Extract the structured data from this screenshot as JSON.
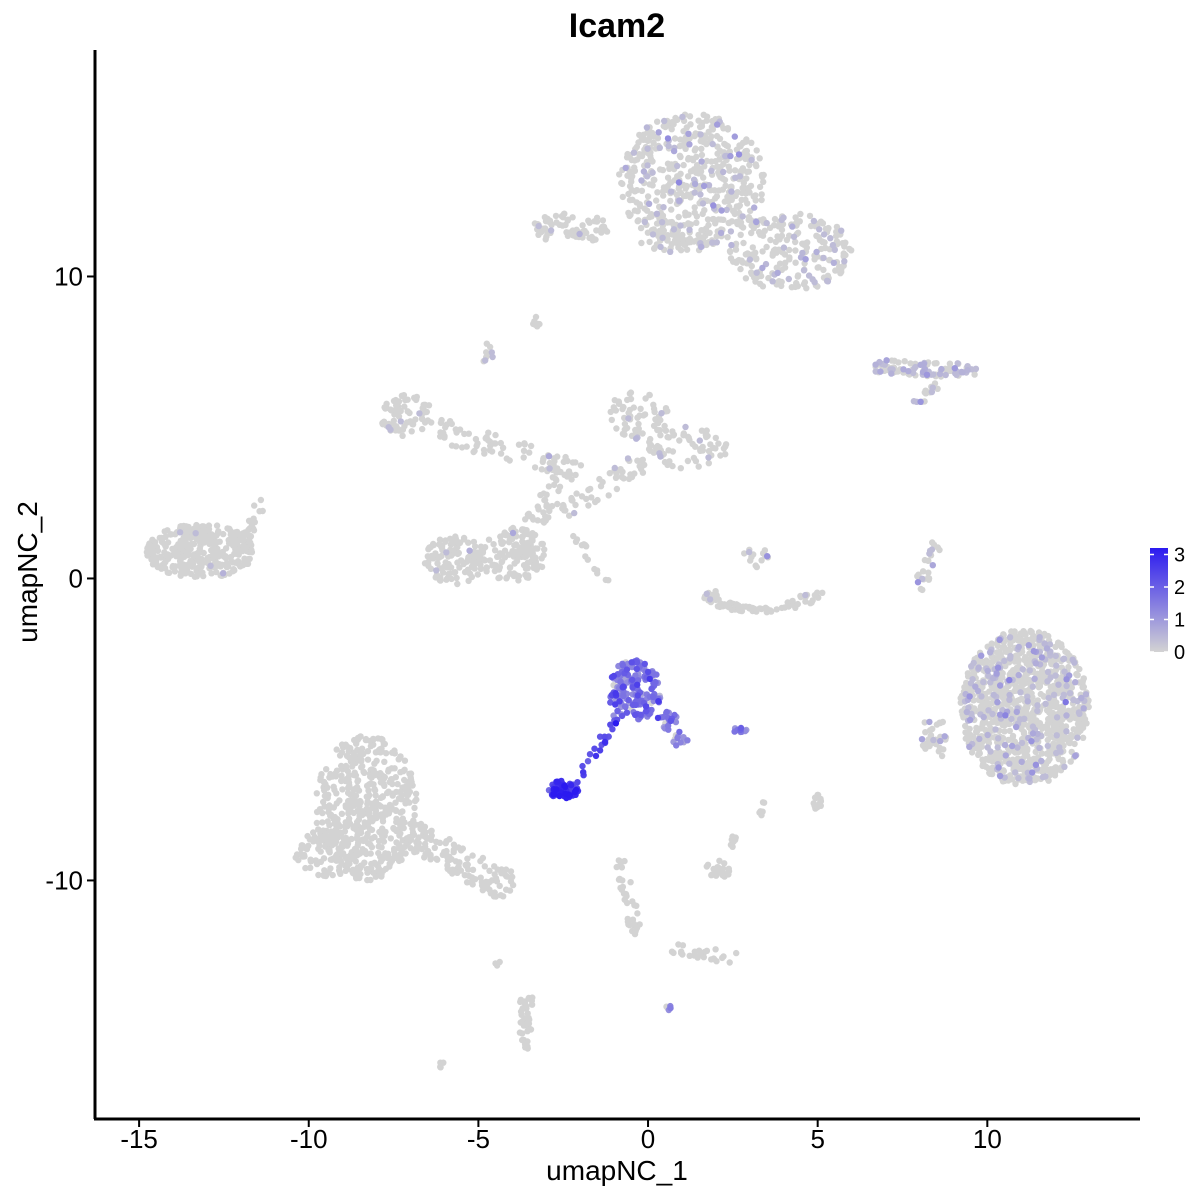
{
  "chart_data": {
    "type": "scatter",
    "title": "Icam2",
    "xlabel": "umapNC_1",
    "ylabel": "umapNC_2",
    "xlim": [
      -16.3,
      14.5
    ],
    "ylim": [
      -17.9,
      17.5
    ],
    "x_ticks": [
      -15,
      -10,
      -5,
      0,
      5,
      10
    ],
    "x_tick_labels": [
      "-15",
      "-10",
      "-5",
      "0",
      "5",
      "10"
    ],
    "y_ticks": [
      -10,
      0,
      10
    ],
    "y_tick_labels": [
      "-10",
      "0",
      "10"
    ],
    "grid": false,
    "point_color_low": "#d3d3d3",
    "point_color_high": "#2b1af0",
    "legend": {
      "position": "right",
      "min": 0,
      "max": 3.2,
      "ticks": [
        3,
        2,
        1,
        0
      ],
      "tick_labels": [
        "3",
        "2",
        "1",
        "0"
      ]
    },
    "clusters": [
      {
        "cx": 1.3,
        "cy": 13.2,
        "rx": 2.2,
        "ry": 2.2,
        "n": 520,
        "expr": 0.25,
        "frac": 0.14,
        "shape": "ellipse"
      },
      {
        "cx": 4.2,
        "cy": 10.8,
        "rx": 1.8,
        "ry": 1.3,
        "n": 220,
        "expr": 0.25,
        "frac": 0.14,
        "shape": "ellipse"
      },
      {
        "cx": -2.3,
        "cy": 11.6,
        "rx": 1.2,
        "ry": 0.5,
        "n": 70,
        "expr": 0.2,
        "frac": 0.08,
        "shape": "ellipse"
      },
      {
        "cx": 0.9,
        "cy": 11.2,
        "rx": 1.2,
        "ry": 0.4,
        "n": 45,
        "expr": 0.2,
        "frac": 0.08,
        "shape": "ellipse"
      },
      {
        "cx": -3.2,
        "cy": 8.5,
        "rx": 0.2,
        "ry": 0.2,
        "n": 8,
        "expr": 0.1,
        "frac": 0.0,
        "shape": "ellipse"
      },
      {
        "cx": -4.7,
        "cy": 7.4,
        "rx": 0.2,
        "ry": 0.4,
        "n": 10,
        "expr": 0.2,
        "frac": 0.2,
        "shape": "ellipse"
      },
      {
        "x1": 6.7,
        "y1": 7.0,
        "x2": 9.7,
        "y2": 6.9,
        "w": 0.25,
        "n": 90,
        "expr": 0.35,
        "frac": 0.35,
        "shape": "line"
      },
      {
        "x1": 8.8,
        "y1": 6.7,
        "x2": 7.9,
        "y2": 5.8,
        "w": 0.15,
        "n": 15,
        "expr": 0.3,
        "frac": 0.3,
        "shape": "line"
      },
      {
        "cx": -13.2,
        "cy": 0.9,
        "rx": 1.6,
        "ry": 0.9,
        "n": 330,
        "expr": 0.1,
        "frac": 0.02,
        "shape": "ellipse"
      },
      {
        "x1": -12.0,
        "y1": 1.2,
        "x2": -11.4,
        "y2": 2.6,
        "w": 0.2,
        "n": 25,
        "expr": 0.0,
        "frac": 0.0,
        "shape": "line"
      },
      {
        "cx": -7.1,
        "cy": 5.4,
        "rx": 0.8,
        "ry": 0.7,
        "n": 70,
        "expr": 0.2,
        "frac": 0.05,
        "shape": "ellipse"
      },
      {
        "x1": -6.2,
        "y1": 4.9,
        "x2": -2.5,
        "y2": 3.8,
        "w": 0.4,
        "n": 70,
        "expr": 0.1,
        "frac": 0.02,
        "shape": "line"
      },
      {
        "cx": -0.3,
        "cy": 5.4,
        "rx": 0.9,
        "ry": 0.8,
        "n": 60,
        "expr": 0.2,
        "frac": 0.06,
        "shape": "ellipse"
      },
      {
        "x1": 0.0,
        "y1": 4.4,
        "x2": 2.3,
        "y2": 4.3,
        "w": 0.6,
        "n": 70,
        "expr": 0.15,
        "frac": 0.05,
        "shape": "ellipse-line"
      },
      {
        "x1": -2.2,
        "y1": 3.9,
        "x2": -3.4,
        "y2": 1.8,
        "w": 0.3,
        "n": 50,
        "expr": 0.1,
        "frac": 0.02,
        "shape": "line"
      },
      {
        "x1": 0.0,
        "y1": 4.0,
        "x2": -2.5,
        "y2": 2.2,
        "w": 0.35,
        "n": 50,
        "expr": 0.1,
        "frac": 0.02,
        "shape": "line"
      },
      {
        "cx": -5.7,
        "cy": 0.6,
        "rx": 0.9,
        "ry": 0.8,
        "n": 110,
        "expr": 0.1,
        "frac": 0.02,
        "shape": "ellipse"
      },
      {
        "cx": -4.0,
        "cy": 0.8,
        "rx": 1.0,
        "ry": 0.9,
        "n": 140,
        "expr": 0.1,
        "frac": 0.02,
        "shape": "ellipse"
      },
      {
        "x1": -2.3,
        "y1": 1.7,
        "x2": -1.2,
        "y2": -0.2,
        "w": 0.1,
        "n": 14,
        "expr": 0.0,
        "frac": 0.0,
        "shape": "line"
      },
      {
        "cx": 3.3,
        "cy": -0.6,
        "rx": 1.6,
        "ry": 0.7,
        "n": 80,
        "expr": 0.1,
        "frac": 0.04,
        "shape": "arc"
      },
      {
        "cx": 3.2,
        "cy": 0.7,
        "rx": 0.4,
        "ry": 0.4,
        "n": 15,
        "expr": 0.2,
        "frac": 0.1,
        "shape": "ellipse"
      },
      {
        "x1": 8.5,
        "y1": 1.2,
        "x2": 7.9,
        "y2": -0.6,
        "w": 0.2,
        "n": 25,
        "expr": 0.3,
        "frac": 0.15,
        "shape": "line"
      },
      {
        "cx": 11.1,
        "cy": -4.3,
        "rx": 1.9,
        "ry": 2.6,
        "n": 1100,
        "expr": 0.3,
        "frac": 0.16,
        "shape": "ellipse"
      },
      {
        "cx": 8.4,
        "cy": -5.3,
        "rx": 0.4,
        "ry": 0.8,
        "n": 35,
        "expr": 0.3,
        "frac": 0.2,
        "shape": "ellipse"
      },
      {
        "cx": -0.4,
        "cy": -3.7,
        "rx": 0.8,
        "ry": 1.0,
        "n": 170,
        "expr": 1.6,
        "frac": 0.95,
        "shape": "ellipse"
      },
      {
        "x1": 0.4,
        "y1": -4.3,
        "x2": 1.1,
        "y2": -5.6,
        "w": 0.25,
        "n": 30,
        "expr": 1.4,
        "frac": 0.9,
        "shape": "line"
      },
      {
        "x1": -0.9,
        "y1": -4.6,
        "x2": -2.1,
        "y2": -6.8,
        "w": 0.15,
        "n": 22,
        "expr": 2.4,
        "frac": 1.0,
        "shape": "line"
      },
      {
        "cx": -2.5,
        "cy": -7.0,
        "rx": 0.45,
        "ry": 0.3,
        "n": 75,
        "expr": 2.7,
        "frac": 1.0,
        "shape": "ellipse"
      },
      {
        "cx": 2.7,
        "cy": -5.0,
        "rx": 0.3,
        "ry": 0.1,
        "n": 10,
        "expr": 1.2,
        "frac": 0.9,
        "shape": "ellipse"
      },
      {
        "cx": -8.3,
        "cy": -7.6,
        "rx": 1.5,
        "ry": 2.4,
        "n": 520,
        "expr": 0.02,
        "frac": 0.0,
        "shape": "ellipse"
      },
      {
        "x1": -7.0,
        "y1": -8.5,
        "x2": -4.0,
        "y2": -10.3,
        "w": 0.5,
        "n": 130,
        "expr": 0.0,
        "frac": 0.0,
        "shape": "line"
      },
      {
        "cx": -9.5,
        "cy": -9.1,
        "rx": 0.9,
        "ry": 0.8,
        "n": 80,
        "expr": 0.0,
        "frac": 0.0,
        "shape": "ellipse"
      },
      {
        "x1": -0.9,
        "y1": -9.3,
        "x2": -0.3,
        "y2": -11.8,
        "w": 0.2,
        "n": 35,
        "expr": 0.0,
        "frac": 0.0,
        "shape": "line"
      },
      {
        "x1": 0.6,
        "y1": -12.2,
        "x2": 2.6,
        "y2": -12.6,
        "w": 0.2,
        "n": 25,
        "expr": 0.0,
        "frac": 0.0,
        "shape": "line"
      },
      {
        "cx": 2.1,
        "cy": -9.6,
        "rx": 0.4,
        "ry": 0.3,
        "n": 25,
        "expr": 0.05,
        "frac": 0.0,
        "shape": "ellipse"
      },
      {
        "x1": 2.5,
        "y1": -8.5,
        "x2": 2.4,
        "y2": -9.2,
        "w": 0.1,
        "n": 8,
        "expr": 0.0,
        "frac": 0.0,
        "shape": "line"
      },
      {
        "x1": 3.4,
        "y1": -7.4,
        "x2": 3.3,
        "y2": -7.9,
        "w": 0.05,
        "n": 6,
        "expr": 0.0,
        "frac": 0.0,
        "shape": "line"
      },
      {
        "cx": 5.0,
        "cy": -7.4,
        "rx": 0.15,
        "ry": 0.3,
        "n": 12,
        "expr": 0.0,
        "frac": 0.0,
        "shape": "ellipse"
      },
      {
        "x1": -3.6,
        "y1": -13.8,
        "x2": -3.6,
        "y2": -15.6,
        "w": 0.2,
        "n": 40,
        "expr": 0.0,
        "frac": 0.0,
        "shape": "line"
      },
      {
        "cx": 0.6,
        "cy": -14.2,
        "rx": 0.1,
        "ry": 0.1,
        "n": 5,
        "expr": 1.0,
        "frac": 0.5,
        "shape": "ellipse"
      },
      {
        "cx": -6.1,
        "cy": -16.1,
        "rx": 0.1,
        "ry": 0.1,
        "n": 4,
        "expr": 0.0,
        "frac": 0.0,
        "shape": "ellipse"
      },
      {
        "cx": -4.4,
        "cy": -12.7,
        "rx": 0.2,
        "ry": 0.2,
        "n": 3,
        "expr": 0.0,
        "frac": 0.0,
        "shape": "ellipse"
      }
    ]
  }
}
